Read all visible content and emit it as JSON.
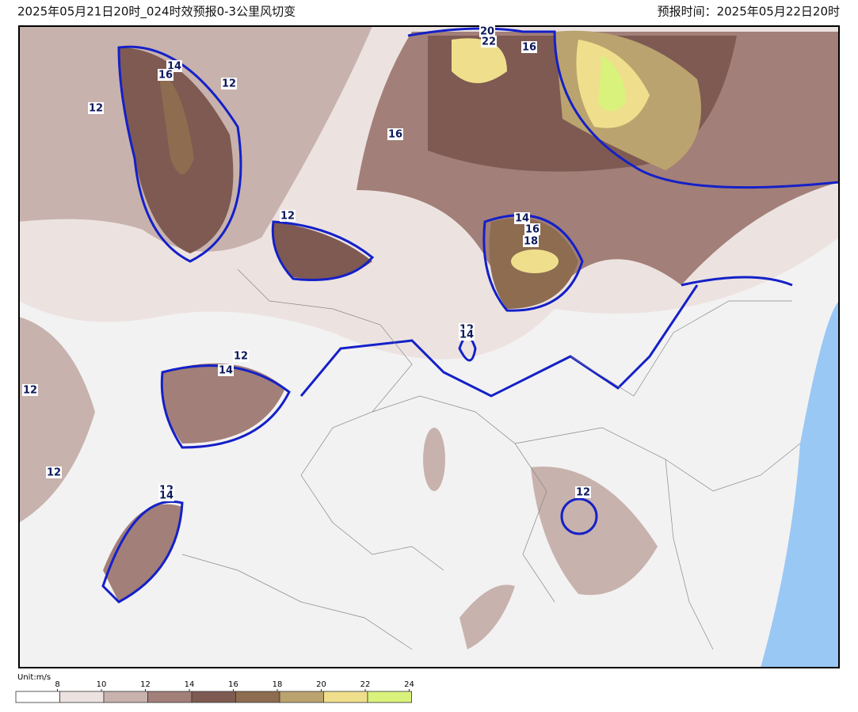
{
  "header": {
    "title": "2025年05月21日20时_024时效预报0-3公里风切变",
    "valid_time": "预报时间：2025年05月22日20时"
  },
  "contour_labels": [
    20,
    22,
    16,
    14,
    16,
    12,
    12,
    16,
    12,
    14,
    16,
    18,
    12,
    14,
    12,
    14,
    12,
    12,
    12,
    14,
    12
  ],
  "legend": {
    "unit": "Unit:m/s",
    "ticks": [
      8,
      10,
      12,
      14,
      16,
      18,
      20,
      22,
      24
    ],
    "colors": [
      "#ffffff",
      "#ece3e1",
      "#c8b2ad",
      "#a27f78",
      "#7e5a52",
      "#8d6c50",
      "#bba36f",
      "#efdf8c",
      "#d8f27c"
    ]
  }
}
